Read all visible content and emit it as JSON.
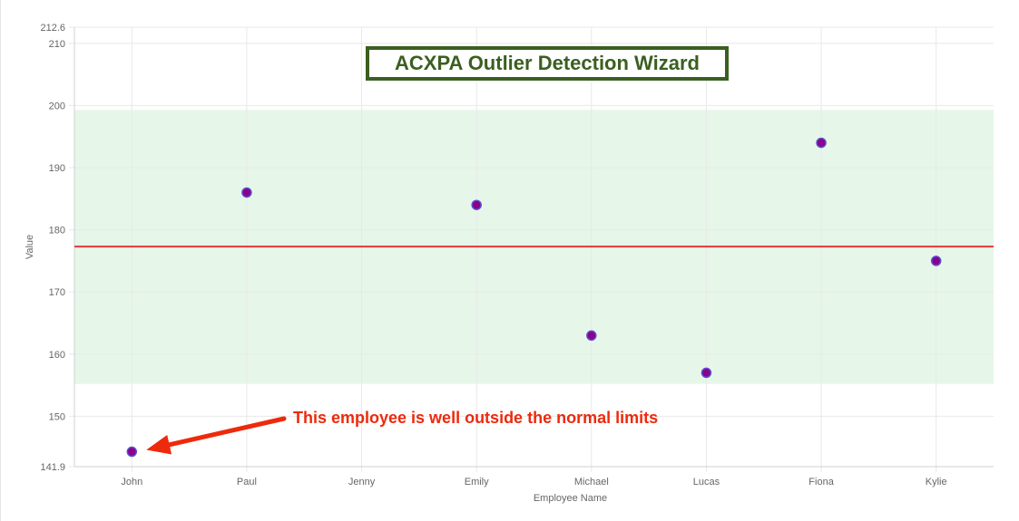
{
  "chart_data": {
    "type": "scatter",
    "title": "ACXPA Outlier Detection Wizard",
    "xlabel": "Employee Name",
    "ylabel": "Value",
    "categories": [
      "John",
      "Paul",
      "Jenny",
      "Emily",
      "Michael",
      "Lucas",
      "Fiona",
      "Kylie"
    ],
    "ylim": [
      141.9,
      212.6
    ],
    "yticks": [
      141.9,
      150,
      160,
      170,
      180,
      190,
      200,
      210,
      212.6
    ],
    "series": [
      {
        "values": [
          144.3,
          186,
          null,
          184,
          163,
          157,
          194,
          175
        ]
      }
    ],
    "mean_line": 177.3,
    "normal_band": [
      155.2,
      199.3
    ],
    "annotation": {
      "text": "This employee is well outside the normal limits",
      "target_category": "John"
    },
    "grid": true,
    "colors": {
      "point_fill": "#8b008b",
      "point_stroke": "#5a4fcf",
      "mean_line": "#e53935",
      "band": "#e6f7ea",
      "grid": "#e8e8e8",
      "title": "#3a5f1f",
      "annotation": "#ee2a0c"
    }
  }
}
